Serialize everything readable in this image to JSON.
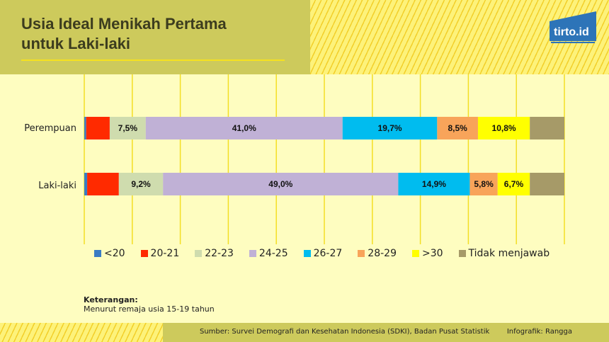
{
  "header": {
    "title_line1": "Usia Ideal Menikah Pertama",
    "title_line2": "untuk Laki-laki",
    "logo": "tirto.id"
  },
  "chart_data": {
    "type": "bar",
    "stacked": true,
    "orientation": "horizontal",
    "title": "Usia Ideal Menikah Pertama untuk Laki-laki",
    "categories": [
      "Perempuan",
      "Laki-laki"
    ],
    "series": [
      {
        "name": "<20",
        "color": "#3a7cc4",
        "values": [
          0.4,
          0.6
        ]
      },
      {
        "name": "20-21",
        "color": "#ff2a00",
        "values": [
          4.9,
          6.6
        ]
      },
      {
        "name": "22-23",
        "color": "#cfdcae",
        "values": [
          7.5,
          9.2
        ],
        "labels": [
          "7,5%",
          "9,2%"
        ]
      },
      {
        "name": "24-25",
        "color": "#c0b1d6",
        "values": [
          41.0,
          49.0
        ],
        "labels": [
          "41,0%",
          "49,0%"
        ]
      },
      {
        "name": "26-27",
        "color": "#00bcef",
        "values": [
          19.7,
          14.9
        ],
        "labels": [
          "19,7%",
          "14,9%"
        ]
      },
      {
        "name": "28-29",
        "color": "#f8a45a",
        "values": [
          8.5,
          5.8
        ],
        "labels": [
          "8,5%",
          "5,8%"
        ]
      },
      {
        "name": ">30",
        "color": "#ffff00",
        "values": [
          10.8,
          6.7
        ],
        "labels": [
          "10,8%",
          "6,7%"
        ]
      },
      {
        "name": "Tidak menjawab",
        "color": "#a69a68",
        "values": [
          7.2,
          7.2
        ]
      }
    ],
    "xlim": [
      0,
      100
    ],
    "grid": true,
    "legend": "bottom"
  },
  "note": {
    "title": "Keterangan:",
    "text": "Menurut remaja usia 15-19 tahun"
  },
  "footer": {
    "source": "Sumber: Survei Demografi dan Kesehatan Indonesia (SDKI), Badan Pusat Statistik",
    "credit": "Infografik: Rangga"
  }
}
